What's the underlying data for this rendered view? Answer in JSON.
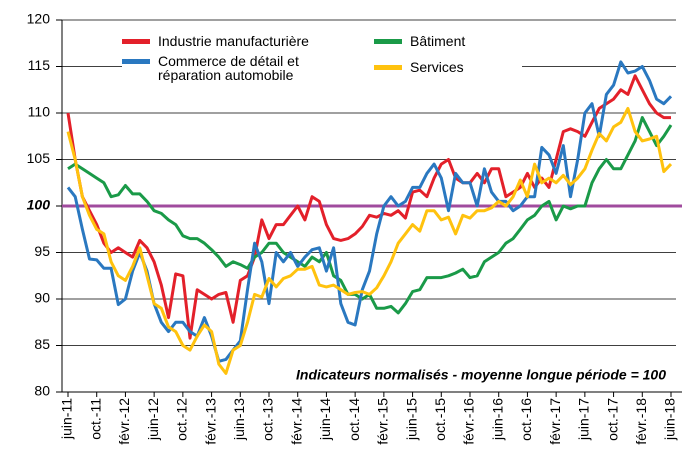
{
  "chart_data": {
    "type": "line",
    "categories": [
      "juin-11",
      null,
      null,
      null,
      "oct.-11",
      null,
      null,
      null,
      "févr.-12",
      null,
      null,
      null,
      "juin-12",
      null,
      null,
      null,
      "oct.-12",
      null,
      null,
      null,
      "févr.-13",
      null,
      null,
      null,
      "juin-13",
      null,
      null,
      null,
      "oct.-13",
      null,
      null,
      null,
      "févr.-14",
      null,
      null,
      null,
      "juin-14",
      null,
      null,
      null,
      "oct.-14",
      null,
      null,
      null,
      "févr.-15",
      null,
      null,
      null,
      "juin-15",
      null,
      null,
      null,
      "oct.-15",
      null,
      null,
      null,
      "févr.-16",
      null,
      null,
      null,
      "juin-16",
      null,
      null,
      null,
      "oct.-16",
      null,
      null,
      null,
      "févr.-17",
      null,
      null,
      null,
      "juin-17",
      null,
      null,
      null,
      "oct.-17",
      null,
      null,
      null,
      "févr.-18",
      null,
      null,
      null,
      "juin-18"
    ],
    "series": [
      {
        "name": "Industrie manufacturière",
        "color": "#e3202a",
        "values": [
          110,
          105,
          101,
          99.5,
          98,
          96,
          95,
          95.5,
          95,
          94.5,
          96.3,
          95.5,
          94,
          91.5,
          88,
          92.7,
          92.5,
          85.8,
          91,
          90.5,
          90,
          90.5,
          90.7,
          87.5,
          92,
          92.5,
          94.5,
          98.5,
          96.5,
          98,
          98,
          99,
          100,
          98.5,
          101,
          100.5,
          98,
          96.5,
          96.3,
          96.5,
          97,
          97.8,
          99,
          98.8,
          99.2,
          99,
          99.5,
          98.7,
          101.5,
          101.7,
          101,
          103,
          104.5,
          105,
          103,
          102.5,
          102.5,
          103.5,
          102.5,
          104,
          104,
          101,
          101.5,
          102,
          103.5,
          102,
          103,
          102,
          105,
          108,
          108.3,
          108,
          107.5,
          109,
          110.5,
          111,
          111.5,
          112.5,
          112,
          114,
          112.5,
          111,
          110,
          109.5,
          109.5
        ]
      },
      {
        "name": "Bâtiment",
        "color": "#1a9a48",
        "values": [
          104,
          104.5,
          104,
          103.5,
          103,
          102.5,
          101,
          101.2,
          102.2,
          101.3,
          101.3,
          100.5,
          99.5,
          99.2,
          98.5,
          98,
          96.8,
          96.5,
          96.5,
          96,
          95.3,
          94.5,
          93.5,
          94,
          93.7,
          93.3,
          94.5,
          95,
          96,
          96,
          95,
          94.5,
          94,
          93.5,
          94.5,
          94,
          95,
          92.5,
          92,
          90.5,
          90.5,
          90,
          90.5,
          89,
          89,
          89.2,
          88.5,
          89.5,
          90.8,
          91,
          92.3,
          92.3,
          92.3,
          92.5,
          92.8,
          93.2,
          92.3,
          92.5,
          94,
          94.5,
          95,
          96,
          96.5,
          97.5,
          98.5,
          99,
          100,
          100.5,
          98.5,
          100,
          99.7,
          100,
          100,
          102.5,
          104,
          105,
          104,
          104,
          105.5,
          107,
          109.5,
          108,
          106.5,
          107.5,
          108.7
        ]
      },
      {
        "name": "Commerce de détail et réparation automobile",
        "color": "#2a78c0",
        "values": [
          102,
          101,
          97.5,
          94.3,
          94.2,
          93.3,
          93.3,
          89.4,
          90,
          93,
          95,
          93,
          89.5,
          87.5,
          86.5,
          87.5,
          87.5,
          86.5,
          86,
          88,
          86,
          83.3,
          83.5,
          84.5,
          85.5,
          91,
          96,
          94,
          89.5,
          95,
          94,
          95,
          93.5,
          94.5,
          95.3,
          95.5,
          93,
          95.5,
          89.5,
          87.5,
          87.2,
          91,
          93,
          97,
          100,
          101,
          100,
          100.5,
          102,
          102,
          103.5,
          104.5,
          103,
          99.5,
          103.5,
          102.5,
          102.5,
          100,
          104,
          101.5,
          100.5,
          100.5,
          99.5,
          100,
          101,
          101,
          106.3,
          105.5,
          103.5,
          106.5,
          101,
          105,
          110,
          111,
          107.5,
          112,
          113,
          115.5,
          114.3,
          114.5,
          115,
          113.5,
          111.5,
          111,
          111.8
        ]
      },
      {
        "name": "Services",
        "color": "#ffc20e",
        "values": [
          108,
          105,
          101,
          99,
          97.5,
          97,
          94,
          92.5,
          92,
          93.5,
          95.5,
          92.5,
          89.5,
          89,
          87,
          86.5,
          85,
          84.5,
          86,
          87.2,
          86.5,
          83,
          82,
          84.5,
          85,
          87.5,
          90.5,
          90.2,
          92.2,
          91.3,
          92.2,
          92.5,
          93.2,
          93.2,
          93.5,
          91.5,
          91.3,
          91.5,
          91,
          90.5,
          90.7,
          90.8,
          90.5,
          91.2,
          92.5,
          94,
          96,
          97,
          98,
          97.3,
          99.5,
          99.5,
          98.5,
          98.8,
          97,
          99,
          98.7,
          99.5,
          99.5,
          99.8,
          100.5,
          100,
          101,
          102.8,
          101,
          104.5,
          102.5,
          103,
          102.5,
          103.3,
          102.3,
          103,
          104,
          106,
          107.8,
          107,
          108.5,
          109,
          110.5,
          108,
          107,
          107.2,
          107.5,
          103.7,
          104.5
        ]
      }
    ],
    "ylim": [
      80,
      120
    ],
    "yticks": [
      80,
      85,
      90,
      95,
      100,
      105,
      110,
      115,
      120
    ],
    "grid": true,
    "reference_line": {
      "value": 100,
      "color": "#a04b9e"
    },
    "annotation": "Indicateurs normalisés - moyenne longue période = 100",
    "legend": "top"
  }
}
